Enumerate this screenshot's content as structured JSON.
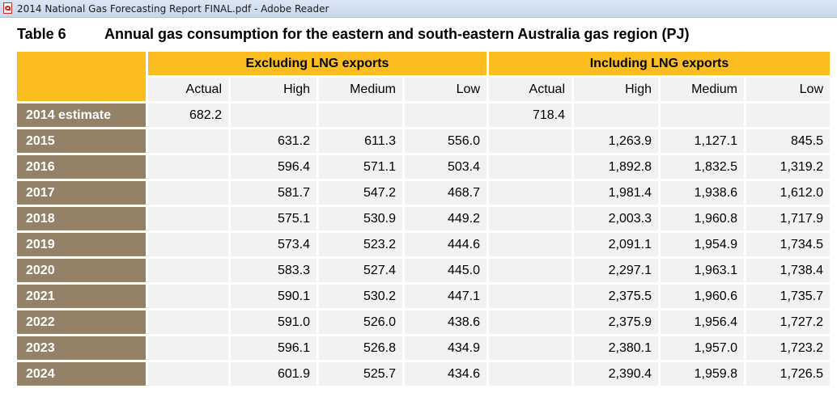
{
  "window": {
    "title": "2014 National Gas Forecasting Report FINAL.pdf - Adobe Reader"
  },
  "table": {
    "number": "Table 6",
    "title": "Annual gas consumption for the eastern and south-eastern Australia gas region (PJ)",
    "groups": [
      "Excluding LNG exports",
      "Including LNG exports"
    ],
    "subheaders": [
      "Actual",
      "High",
      "Medium",
      "Low",
      "Actual",
      "High",
      "Medium",
      "Low"
    ],
    "rows": [
      {
        "label": "2014 estimate",
        "cells": [
          "682.2",
          "",
          "",
          "",
          "718.4",
          "",
          "",
          ""
        ]
      },
      {
        "label": "2015",
        "cells": [
          "",
          "631.2",
          "611.3",
          "556.0",
          "",
          "1,263.9",
          "1,127.1",
          "845.5"
        ]
      },
      {
        "label": "2016",
        "cells": [
          "",
          "596.4",
          "571.1",
          "503.4",
          "",
          "1,892.8",
          "1,832.5",
          "1,319.2"
        ]
      },
      {
        "label": "2017",
        "cells": [
          "",
          "581.7",
          "547.2",
          "468.7",
          "",
          "1,981.4",
          "1,938.6",
          "1,612.0"
        ]
      },
      {
        "label": "2018",
        "cells": [
          "",
          "575.1",
          "530.9",
          "449.2",
          "",
          "2,003.3",
          "1,960.8",
          "1,717.9"
        ]
      },
      {
        "label": "2019",
        "cells": [
          "",
          "573.4",
          "523.2",
          "444.6",
          "",
          "2,091.1",
          "1,954.9",
          "1,734.5"
        ]
      },
      {
        "label": "2020",
        "cells": [
          "",
          "583.3",
          "527.4",
          "445.0",
          "",
          "2,297.1",
          "1,963.1",
          "1,738.4"
        ]
      },
      {
        "label": "2021",
        "cells": [
          "",
          "590.1",
          "530.2",
          "447.1",
          "",
          "2,375.5",
          "1,960.6",
          "1,735.7"
        ]
      },
      {
        "label": "2022",
        "cells": [
          "",
          "591.0",
          "526.0",
          "438.6",
          "",
          "2,375.9",
          "1,956.4",
          "1,727.2"
        ]
      },
      {
        "label": "2023",
        "cells": [
          "",
          "596.1",
          "526.8",
          "434.9",
          "",
          "2,380.1",
          "1,957.0",
          "1,723.2"
        ]
      },
      {
        "label": "2024",
        "cells": [
          "",
          "601.9",
          "525.7",
          "434.6",
          "",
          "2,390.4",
          "1,959.8",
          "1,726.5"
        ]
      }
    ]
  },
  "colors": {
    "header_gold": "#fbbd1f",
    "row_label_brown": "#938268",
    "cell_grey": "#f2f2f2"
  },
  "icons": {
    "app": "pdf-file-icon"
  }
}
